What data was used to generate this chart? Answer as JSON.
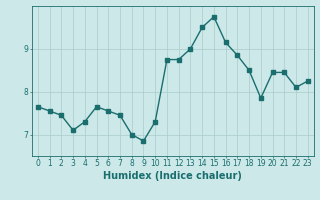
{
  "x": [
    0,
    1,
    2,
    3,
    4,
    5,
    6,
    7,
    8,
    9,
    10,
    11,
    12,
    13,
    14,
    15,
    16,
    17,
    18,
    19,
    20,
    21,
    22,
    23
  ],
  "y": [
    7.65,
    7.55,
    7.45,
    7.1,
    7.3,
    7.65,
    7.55,
    7.45,
    7.0,
    6.85,
    7.3,
    8.75,
    8.75,
    9.0,
    9.5,
    9.75,
    9.15,
    8.85,
    8.5,
    7.85,
    8.45,
    8.45,
    8.1,
    8.25
  ],
  "xlabel": "Humidex (Indice chaleur)",
  "ylim": [
    6.5,
    10.0
  ],
  "xlim": [
    -0.5,
    23.5
  ],
  "bg_color": "#cce8e8",
  "line_color": "#1a6e6e",
  "grid_color": "#aacccc",
  "yticks": [
    7,
    8,
    9
  ],
  "xticks": [
    0,
    1,
    2,
    3,
    4,
    5,
    6,
    7,
    8,
    9,
    10,
    11,
    12,
    13,
    14,
    15,
    16,
    17,
    18,
    19,
    20,
    21,
    22,
    23
  ],
  "tick_fontsize": 5.5,
  "xlabel_fontsize": 7,
  "linewidth": 1.0,
  "markersize": 2.5
}
